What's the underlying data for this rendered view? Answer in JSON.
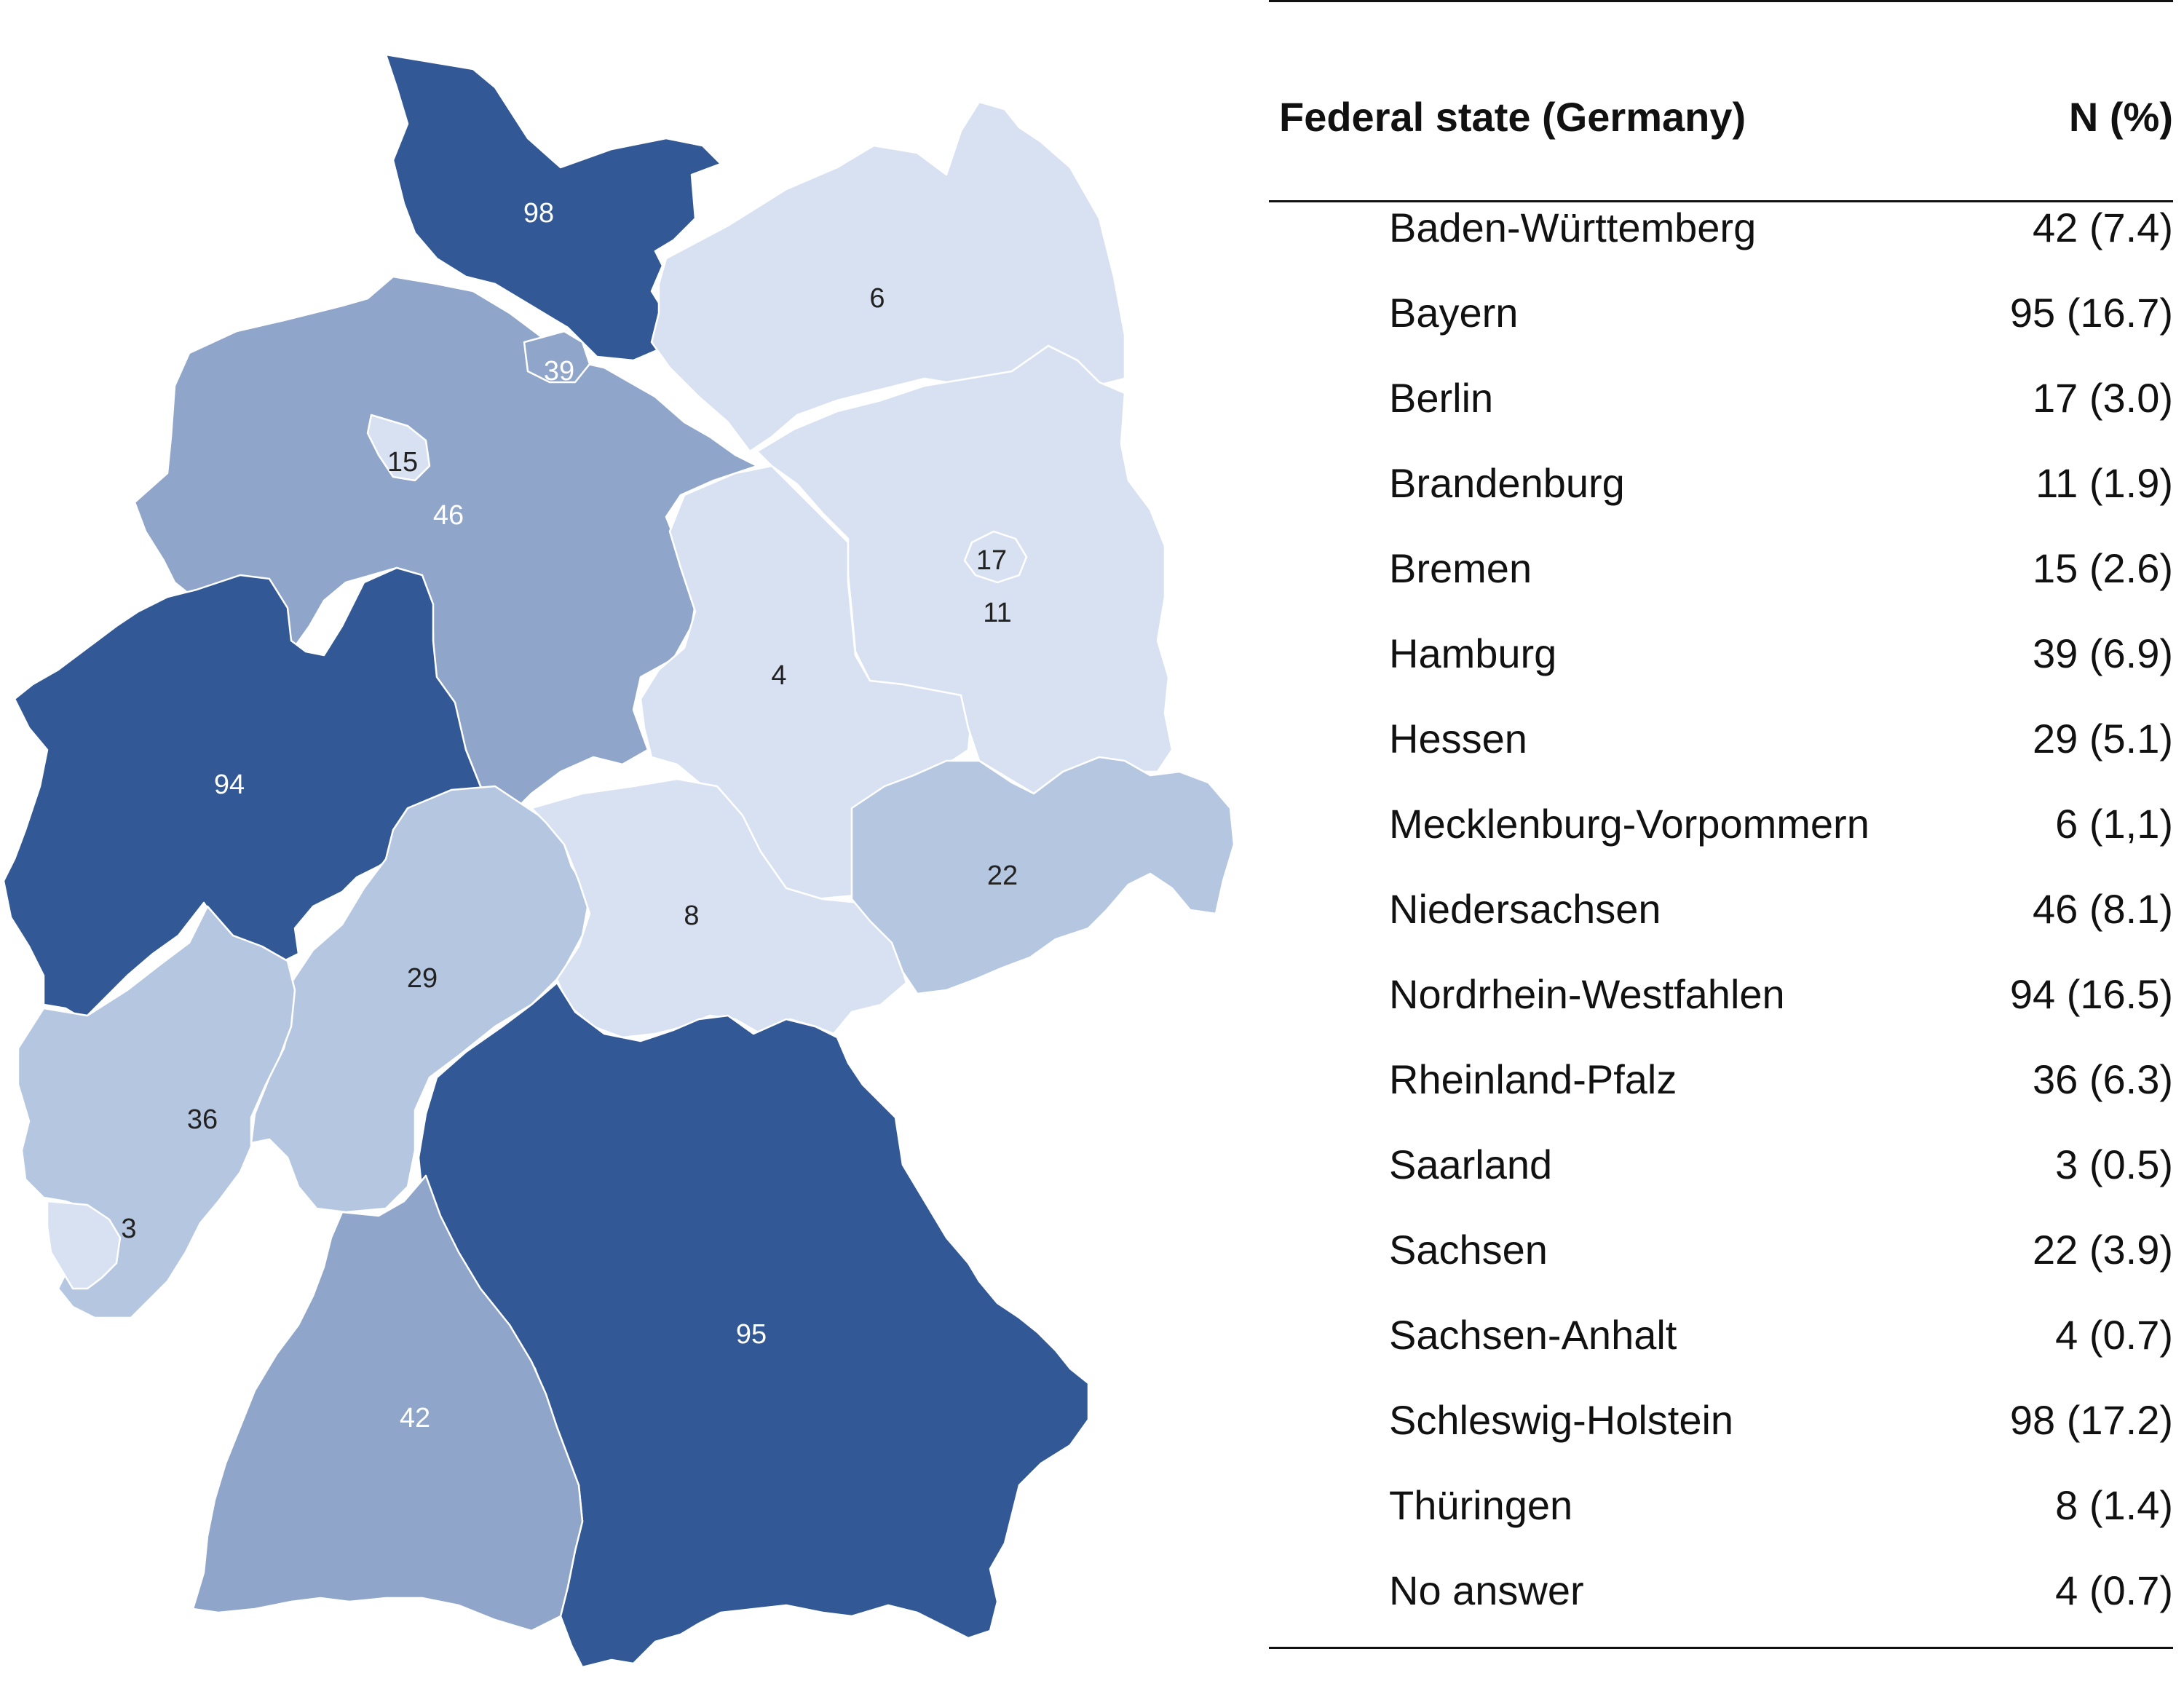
{
  "colors": {
    "dark": "#325996",
    "medium": "#8fa5c9",
    "medium_light": "#b5c6e1",
    "light": "#d8e1f2",
    "border": "#ffffff"
  },
  "map": {
    "regions": [
      {
        "key": "schleswig-holstein",
        "label": "98",
        "shade": "dark"
      },
      {
        "key": "mecklenburg-vorpommern",
        "label": "6",
        "shade": "light"
      },
      {
        "key": "hamburg",
        "label": "39",
        "shade": "medium"
      },
      {
        "key": "bremen",
        "label": "15",
        "shade": "light"
      },
      {
        "key": "niedersachsen",
        "label": "46",
        "shade": "medium"
      },
      {
        "key": "brandenburg",
        "label": "11",
        "shade": "light"
      },
      {
        "key": "berlin",
        "label": "17",
        "shade": "light"
      },
      {
        "key": "sachsen-anhalt",
        "label": "4",
        "shade": "light"
      },
      {
        "key": "nordrhein-westfalen",
        "label": "94",
        "shade": "dark"
      },
      {
        "key": "sachsen",
        "label": "22",
        "shade": "medium_light"
      },
      {
        "key": "thueringen",
        "label": "8",
        "shade": "light"
      },
      {
        "key": "hessen",
        "label": "29",
        "shade": "medium_light"
      },
      {
        "key": "rheinland-pfalz",
        "label": "36",
        "shade": "medium_light"
      },
      {
        "key": "saarland",
        "label": "3",
        "shade": "light"
      },
      {
        "key": "bayern",
        "label": "95",
        "shade": "dark"
      },
      {
        "key": "baden-wuerttemberg",
        "label": "42",
        "shade": "medium"
      }
    ]
  },
  "table": {
    "header": {
      "state": "Federal state (Germany)",
      "count": "N (%)"
    },
    "rows": [
      {
        "state": "Baden-Württemberg",
        "count": "42 (7.4)"
      },
      {
        "state": "Bayern",
        "count": "95 (16.7)"
      },
      {
        "state": "Berlin",
        "count": "17 (3.0)"
      },
      {
        "state": "Brandenburg",
        "count": "11 (1.9)"
      },
      {
        "state": "Bremen",
        "count": "15 (2.6)"
      },
      {
        "state": "Hamburg",
        "count": "39 (6.9)"
      },
      {
        "state": "Hessen",
        "count": "29 (5.1)"
      },
      {
        "state": "Mecklenburg-Vorpommern",
        "count": "6 (1,1)"
      },
      {
        "state": "Niedersachsen",
        "count": "46 (8.1)"
      },
      {
        "state": "Nordrhein-Westfahlen",
        "count": "94 (16.5)"
      },
      {
        "state": "Rheinland-Pfalz",
        "count": "36 (6.3)"
      },
      {
        "state": "Saarland",
        "count": "3 (0.5)"
      },
      {
        "state": "Sachsen",
        "count": "22 (3.9)"
      },
      {
        "state": "Sachsen-Anhalt",
        "count": "4 (0.7)"
      },
      {
        "state": "Schleswig-Holstein",
        "count": "98 (17.2)"
      },
      {
        "state": "Thüringen",
        "count": "8 (1.4)"
      },
      {
        "state": "No answer",
        "count": "4 (0.7)"
      }
    ]
  }
}
